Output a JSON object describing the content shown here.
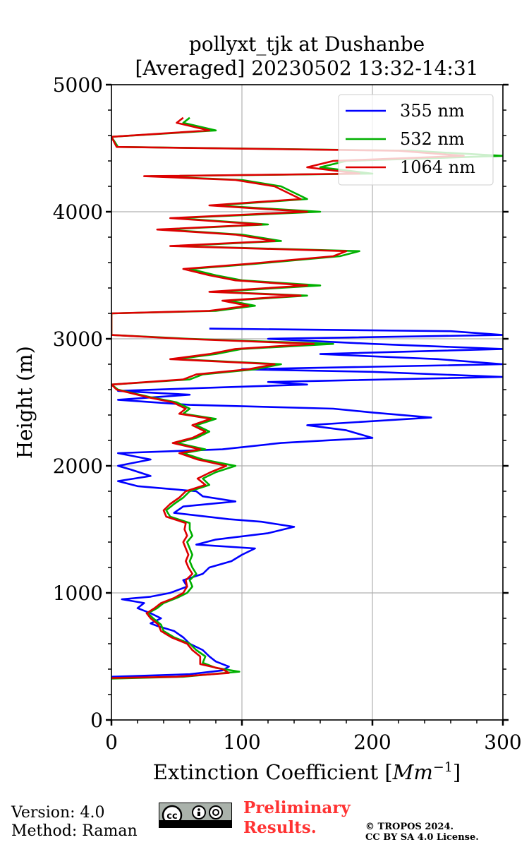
{
  "chart_data": {
    "type": "line",
    "title": [
      "pollyxt_tjk at Dushanbe",
      "[Averaged] 20230502 13:32-14:31"
    ],
    "xlabel": "Extinction Coefficient [Mm⁻¹]",
    "xlabel_main": "Extinction Coefficient [",
    "xlabel_unit": "Mm",
    "xlabel_exp": "−1",
    "xlabel_close": "]",
    "ylabel": "Height (m)",
    "xlim": [
      0,
      300
    ],
    "ylim": [
      0,
      5000
    ],
    "xticks": [
      "0",
      "100",
      "200",
      "300"
    ],
    "yticks": [
      "0",
      "1000",
      "2000",
      "3000",
      "4000",
      "5000"
    ],
    "grid": true,
    "legend_position": "top-right",
    "series": [
      {
        "name": "355 nm",
        "color": "#0000ff",
        "points": [
          [
            0,
            340
          ],
          [
            60,
            360
          ],
          [
            85,
            390
          ],
          [
            90,
            420
          ],
          [
            80,
            460
          ],
          [
            75,
            500
          ],
          [
            70,
            550
          ],
          [
            60,
            600
          ],
          [
            55,
            650
          ],
          [
            48,
            700
          ],
          [
            35,
            740
          ],
          [
            30,
            760
          ],
          [
            38,
            800
          ],
          [
            30,
            840
          ],
          [
            20,
            880
          ],
          [
            25,
            920
          ],
          [
            8,
            950
          ],
          [
            30,
            970
          ],
          [
            45,
            1000
          ],
          [
            58,
            1050
          ],
          [
            55,
            1100
          ],
          [
            70,
            1150
          ],
          [
            75,
            1200
          ],
          [
            92,
            1250
          ],
          [
            100,
            1300
          ],
          [
            110,
            1350
          ],
          [
            65,
            1380
          ],
          [
            80,
            1420
          ],
          [
            120,
            1470
          ],
          [
            140,
            1520
          ],
          [
            115,
            1560
          ],
          [
            90,
            1580
          ],
          [
            48,
            1630
          ],
          [
            55,
            1680
          ],
          [
            95,
            1720
          ],
          [
            70,
            1760
          ],
          [
            65,
            1800
          ],
          [
            20,
            1840
          ],
          [
            5,
            1880
          ],
          [
            30,
            1920
          ],
          [
            15,
            1970
          ],
          [
            5,
            2000
          ],
          [
            30,
            2050
          ],
          [
            5,
            2100
          ],
          [
            85,
            2130
          ],
          [
            130,
            2180
          ],
          [
            200,
            2220
          ],
          [
            180,
            2280
          ],
          [
            150,
            2320
          ],
          [
            245,
            2380
          ],
          [
            200,
            2420
          ],
          [
            170,
            2450
          ],
          [
            60,
            2480
          ],
          [
            5,
            2520
          ],
          [
            60,
            2560
          ],
          [
            5,
            2590
          ],
          [
            90,
            2620
          ],
          [
            150,
            2640
          ],
          [
            120,
            2660
          ],
          [
            300,
            2700
          ],
          [
            200,
            2740
          ],
          [
            100,
            2760
          ],
          [
            300,
            2800
          ],
          [
            250,
            2840
          ],
          [
            160,
            2880
          ],
          [
            300,
            2920
          ],
          [
            200,
            2960
          ],
          [
            120,
            3000
          ],
          [
            300,
            3030
          ],
          [
            260,
            3060
          ],
          [
            75,
            3080
          ]
        ]
      },
      {
        "name": "532 nm",
        "color": "#00b000",
        "points": [
          [
            0,
            325
          ],
          [
            55,
            340
          ],
          [
            98,
            380
          ],
          [
            80,
            410
          ],
          [
            70,
            450
          ],
          [
            72,
            500
          ],
          [
            65,
            550
          ],
          [
            60,
            600
          ],
          [
            48,
            650
          ],
          [
            40,
            700
          ],
          [
            38,
            750
          ],
          [
            32,
            800
          ],
          [
            28,
            840
          ],
          [
            35,
            880
          ],
          [
            40,
            920
          ],
          [
            50,
            960
          ],
          [
            58,
            1000
          ],
          [
            62,
            1050
          ],
          [
            60,
            1100
          ],
          [
            65,
            1150
          ],
          [
            62,
            1200
          ],
          [
            60,
            1250
          ],
          [
            62,
            1300
          ],
          [
            60,
            1350
          ],
          [
            58,
            1400
          ],
          [
            62,
            1450
          ],
          [
            60,
            1500
          ],
          [
            60,
            1550
          ],
          [
            45,
            1600
          ],
          [
            42,
            1650
          ],
          [
            48,
            1700
          ],
          [
            55,
            1750
          ],
          [
            60,
            1800
          ],
          [
            75,
            1850
          ],
          [
            70,
            1900
          ],
          [
            80,
            1950
          ],
          [
            95,
            2000
          ],
          [
            70,
            2050
          ],
          [
            55,
            2100
          ],
          [
            72,
            2130
          ],
          [
            50,
            2180
          ],
          [
            65,
            2220
          ],
          [
            75,
            2270
          ],
          [
            65,
            2320
          ],
          [
            80,
            2370
          ],
          [
            55,
            2410
          ],
          [
            60,
            2450
          ],
          [
            50,
            2500
          ],
          [
            30,
            2540
          ],
          [
            5,
            2600
          ],
          [
            0,
            2640
          ],
          [
            60,
            2680
          ],
          [
            70,
            2720
          ],
          [
            110,
            2760
          ],
          [
            130,
            2800
          ],
          [
            50,
            2840
          ],
          [
            80,
            2880
          ],
          [
            100,
            2920
          ],
          [
            170,
            2960
          ],
          [
            60,
            3000
          ],
          [
            0,
            3030
          ],
          [
            0,
            3200
          ],
          [
            80,
            3220
          ],
          [
            110,
            3260
          ],
          [
            90,
            3300
          ],
          [
            150,
            3340
          ],
          [
            80,
            3370
          ],
          [
            160,
            3420
          ],
          [
            100,
            3460
          ],
          [
            80,
            3500
          ],
          [
            60,
            3550
          ],
          [
            110,
            3590
          ],
          [
            175,
            3650
          ],
          [
            190,
            3690
          ],
          [
            50,
            3730
          ],
          [
            130,
            3770
          ],
          [
            100,
            3820
          ],
          [
            40,
            3860
          ],
          [
            120,
            3900
          ],
          [
            50,
            3950
          ],
          [
            160,
            4000
          ],
          [
            80,
            4050
          ],
          [
            150,
            4100
          ],
          [
            140,
            4150
          ],
          [
            130,
            4200
          ],
          [
            100,
            4250
          ],
          [
            30,
            4280
          ],
          [
            200,
            4300
          ],
          [
            160,
            4350
          ],
          [
            180,
            4400
          ],
          [
            300,
            4440
          ],
          [
            230,
            4480
          ],
          [
            5,
            4510
          ],
          [
            0,
            4590
          ],
          [
            80,
            4640
          ],
          [
            55,
            4700
          ],
          [
            60,
            4740
          ]
        ]
      },
      {
        "name": "1064 nm",
        "color": "#dd0000",
        "points": [
          [
            0,
            330
          ],
          [
            50,
            340
          ],
          [
            90,
            370
          ],
          [
            85,
            400
          ],
          [
            68,
            440
          ],
          [
            68,
            500
          ],
          [
            62,
            550
          ],
          [
            58,
            600
          ],
          [
            46,
            650
          ],
          [
            38,
            700
          ],
          [
            36,
            750
          ],
          [
            30,
            800
          ],
          [
            27,
            840
          ],
          [
            33,
            880
          ],
          [
            38,
            920
          ],
          [
            48,
            960
          ],
          [
            55,
            1000
          ],
          [
            58,
            1050
          ],
          [
            57,
            1100
          ],
          [
            62,
            1150
          ],
          [
            59,
            1200
          ],
          [
            57,
            1250
          ],
          [
            59,
            1300
          ],
          [
            57,
            1350
          ],
          [
            55,
            1400
          ],
          [
            58,
            1450
          ],
          [
            56,
            1500
          ],
          [
            57,
            1550
          ],
          [
            42,
            1600
          ],
          [
            40,
            1650
          ],
          [
            45,
            1700
          ],
          [
            52,
            1750
          ],
          [
            57,
            1800
          ],
          [
            72,
            1850
          ],
          [
            66,
            1900
          ],
          [
            76,
            1950
          ],
          [
            88,
            2000
          ],
          [
            66,
            2050
          ],
          [
            52,
            2100
          ],
          [
            68,
            2130
          ],
          [
            47,
            2180
          ],
          [
            62,
            2220
          ],
          [
            72,
            2270
          ],
          [
            62,
            2320
          ],
          [
            76,
            2370
          ],
          [
            52,
            2410
          ],
          [
            57,
            2450
          ],
          [
            47,
            2500
          ],
          [
            28,
            2540
          ],
          [
            4,
            2600
          ],
          [
            0,
            2640
          ],
          [
            55,
            2680
          ],
          [
            65,
            2720
          ],
          [
            105,
            2760
          ],
          [
            125,
            2800
          ],
          [
            45,
            2840
          ],
          [
            75,
            2880
          ],
          [
            95,
            2920
          ],
          [
            155,
            2960
          ],
          [
            55,
            3000
          ],
          [
            0,
            3030
          ],
          [
            0,
            3200
          ],
          [
            75,
            3220
          ],
          [
            105,
            3260
          ],
          [
            85,
            3300
          ],
          [
            145,
            3340
          ],
          [
            75,
            3370
          ],
          [
            150,
            3420
          ],
          [
            95,
            3460
          ],
          [
            75,
            3500
          ],
          [
            55,
            3550
          ],
          [
            105,
            3590
          ],
          [
            170,
            3650
          ],
          [
            180,
            3690
          ],
          [
            45,
            3730
          ],
          [
            125,
            3770
          ],
          [
            95,
            3820
          ],
          [
            35,
            3860
          ],
          [
            115,
            3900
          ],
          [
            45,
            3950
          ],
          [
            150,
            4000
          ],
          [
            75,
            4050
          ],
          [
            145,
            4100
          ],
          [
            135,
            4150
          ],
          [
            125,
            4200
          ],
          [
            95,
            4250
          ],
          [
            25,
            4280
          ],
          [
            190,
            4300
          ],
          [
            150,
            4350
          ],
          [
            170,
            4400
          ],
          [
            270,
            4440
          ],
          [
            220,
            4480
          ],
          [
            4,
            4510
          ],
          [
            0,
            4590
          ],
          [
            75,
            4640
          ],
          [
            50,
            4700
          ],
          [
            55,
            4740
          ]
        ]
      }
    ]
  },
  "footer": {
    "version": "Version: 4.0",
    "method": "Method: Raman",
    "prelim_1": "Preliminary",
    "prelim_2": "Results.",
    "copyright_1": "© TROPOS 2024.",
    "copyright_2": "CC BY SA 4.0 License.",
    "badge_cc": "cc",
    "badge_by": "BY",
    "badge_sa": "SA"
  }
}
